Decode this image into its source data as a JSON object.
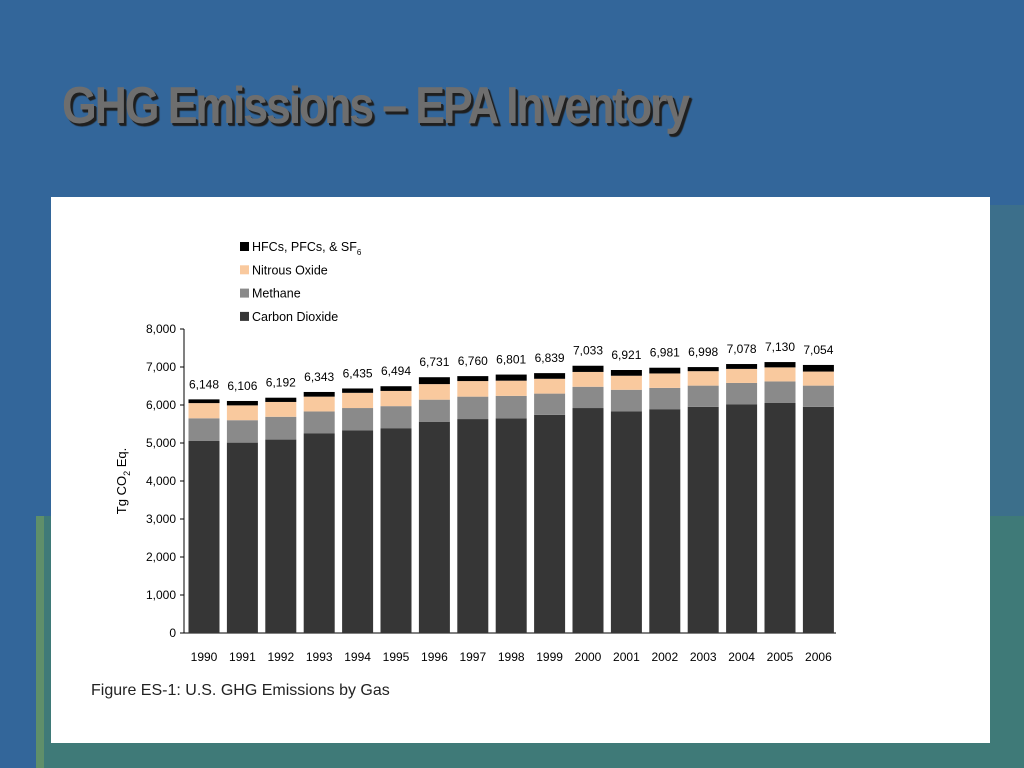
{
  "slide": {
    "title": "GHG Emissions – EPA Inventory",
    "caption": "Figure ES-1:  U.S. GHG Emissions by Gas"
  },
  "colors": {
    "background": "#33669a",
    "co2": "#363636",
    "methane": "#8a8a8a",
    "nitrous": "#f9c99e",
    "hfc": "#000000"
  },
  "chart_data": {
    "type": "bar",
    "stacked": true,
    "categories": [
      "1990",
      "1991",
      "1992",
      "1993",
      "1994",
      "1995",
      "1996",
      "1997",
      "1998",
      "1999",
      "2000",
      "2001",
      "2002",
      "2003",
      "2004",
      "2005",
      "2006"
    ],
    "series": [
      {
        "name": "Carbon Dioxide",
        "color": "#363636",
        "values": [
          5060,
          5010,
          5090,
          5250,
          5330,
          5390,
          5560,
          5630,
          5650,
          5740,
          5920,
          5830,
          5890,
          5950,
          6020,
          6060,
          5950
        ]
      },
      {
        "name": "Methane",
        "color": "#8a8a8a",
        "values": [
          590,
          590,
          600,
          580,
          590,
          580,
          580,
          590,
          590,
          560,
          560,
          570,
          560,
          560,
          560,
          560,
          560
        ]
      },
      {
        "name": "Nitrous Oxide",
        "color": "#f9c99e",
        "values": [
          400,
          390,
          390,
          390,
          400,
          400,
          410,
          410,
          400,
          390,
          390,
          370,
          380,
          380,
          370,
          370,
          370
        ]
      },
      {
        "name": "HFCs, PFCs, & SF",
        "subscript": "6",
        "color": "#000000",
        "values": [
          98,
          116,
          112,
          123,
          115,
          124,
          181,
          130,
          161,
          149,
          163,
          151,
          151,
          108,
          128,
          140,
          174
        ]
      }
    ],
    "totals": [
      "6,148",
      "6,106",
      "6,192",
      "6,343",
      "6,435",
      "6,494",
      "6,731",
      "6,760",
      "6,801",
      "6,839",
      "7,033",
      "6,921",
      "6,981",
      "6,998",
      "7,078",
      "7,130",
      "7,054"
    ],
    "y_ticks": [
      "0",
      "1,000",
      "2,000",
      "3,000",
      "4,000",
      "5,000",
      "6,000",
      "7,000",
      "8,000"
    ],
    "ylabel": "Tg CO",
    "ylabel_sub": "2",
    "ylabel_suffix": " Eq.",
    "xlabel": "",
    "ylim": [
      0,
      8000
    ],
    "legend_position": "top-left",
    "grid": false
  }
}
